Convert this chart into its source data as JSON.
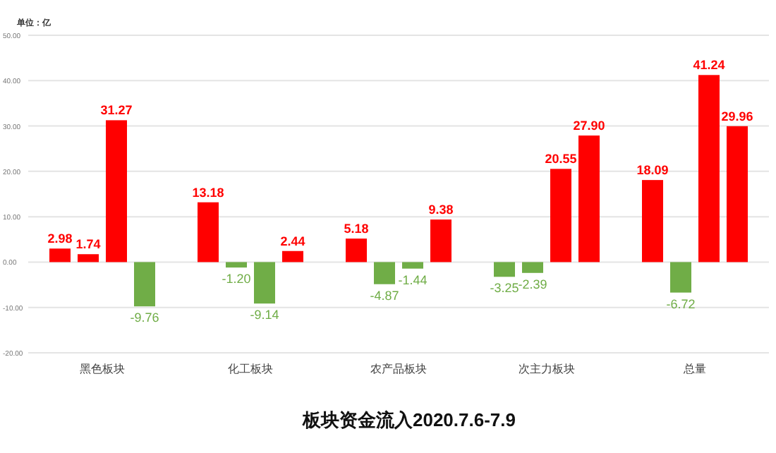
{
  "chart_data": {
    "type": "bar",
    "title": "板块资金流入2020.7.6-7.9",
    "annotations": [
      "单位：亿"
    ],
    "categories": [
      "黑色板块",
      "化工板块",
      "农产品板块",
      "次主力板块",
      "总量"
    ],
    "ylim": [
      -20,
      50
    ],
    "yticks": [
      {
        "value": -20,
        "label": "-20.00"
      },
      {
        "value": -10,
        "label": "-10.00"
      },
      {
        "value": 0,
        "label": "0.00"
      },
      {
        "value": 10,
        "label": "10.00"
      },
      {
        "value": 20,
        "label": "20.00"
      },
      {
        "value": 30,
        "label": "30.00"
      },
      {
        "value": 40,
        "label": "40.00"
      },
      {
        "value": 50,
        "label": "50.00"
      }
    ],
    "grid": "y",
    "series": [
      {
        "values": [
          2.98,
          13.18,
          5.18,
          -3.25,
          18.09
        ],
        "colors": [
          "#ff0000",
          "#ff0000",
          "#ff0000",
          "#70ad47",
          "#ff0000"
        ],
        "value_labels": [
          "2.98",
          "13.18",
          "5.18",
          "-3.25",
          "18.09"
        ]
      },
      {
        "values": [
          1.74,
          -1.2,
          -4.87,
          -2.39,
          -6.72
        ],
        "colors": [
          "#ff0000",
          "#70ad47",
          "#70ad47",
          "#70ad47",
          "#70ad47"
        ],
        "value_labels": [
          "1.74",
          "-1.20",
          "-4.87",
          "-2.39",
          "-6.72"
        ]
      },
      {
        "values": [
          31.27,
          -9.14,
          -1.44,
          20.55,
          41.24
        ],
        "colors": [
          "#ff0000",
          "#70ad47",
          "#70ad47",
          "#ff0000",
          "#ff0000"
        ],
        "value_labels": [
          "31.27",
          "-9.14",
          "-1.44",
          "20.55",
          "41.24"
        ]
      },
      {
        "values": [
          -9.76,
          2.44,
          9.38,
          27.9,
          29.96
        ],
        "colors": [
          "#70ad47",
          "#ff0000",
          "#ff0000",
          "#ff0000",
          "#ff0000"
        ],
        "value_labels": [
          "-9.76",
          "2.44",
          "9.38",
          "27.90",
          "29.96"
        ]
      }
    ]
  }
}
